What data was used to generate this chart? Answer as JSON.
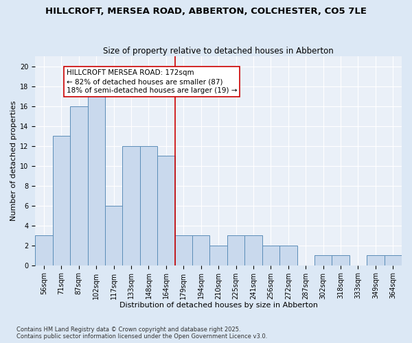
{
  "title1": "HILLCROFT, MERSEA ROAD, ABBERTON, COLCHESTER, CO5 7LE",
  "title2": "Size of property relative to detached houses in Abberton",
  "xlabel": "Distribution of detached houses by size in Abberton",
  "ylabel": "Number of detached properties",
  "categories": [
    "56sqm",
    "71sqm",
    "87sqm",
    "102sqm",
    "117sqm",
    "133sqm",
    "148sqm",
    "164sqm",
    "179sqm",
    "194sqm",
    "210sqm",
    "225sqm",
    "241sqm",
    "256sqm",
    "272sqm",
    "287sqm",
    "302sqm",
    "318sqm",
    "333sqm",
    "349sqm",
    "364sqm"
  ],
  "values": [
    3,
    13,
    16,
    17,
    6,
    12,
    12,
    11,
    3,
    3,
    2,
    3,
    3,
    2,
    2,
    0,
    1,
    1,
    0,
    1,
    1
  ],
  "bar_color": "#c9d9ed",
  "bar_edge_color": "#5b8db8",
  "vline_x": 7.5,
  "vline_color": "#cc0000",
  "annotation_text": "HILLCROFT MERSEA ROAD: 172sqm\n← 82% of detached houses are smaller (87)\n18% of semi-detached houses are larger (19) →",
  "annotation_box_color": "#cc0000",
  "ylim": [
    0,
    21
  ],
  "yticks": [
    0,
    2,
    4,
    6,
    8,
    10,
    12,
    14,
    16,
    18,
    20
  ],
  "footnote": "Contains HM Land Registry data © Crown copyright and database right 2025.\nContains public sector information licensed under the Open Government Licence v3.0.",
  "bg_color": "#dce8f5",
  "plot_bg_color": "#eaf0f8",
  "grid_color": "#ffffff",
  "title_fontsize": 9.5,
  "subtitle_fontsize": 8.5,
  "tick_fontsize": 7,
  "label_fontsize": 8,
  "annotation_fontsize": 7.5,
  "ylabel_fontsize": 8,
  "footnote_fontsize": 6
}
